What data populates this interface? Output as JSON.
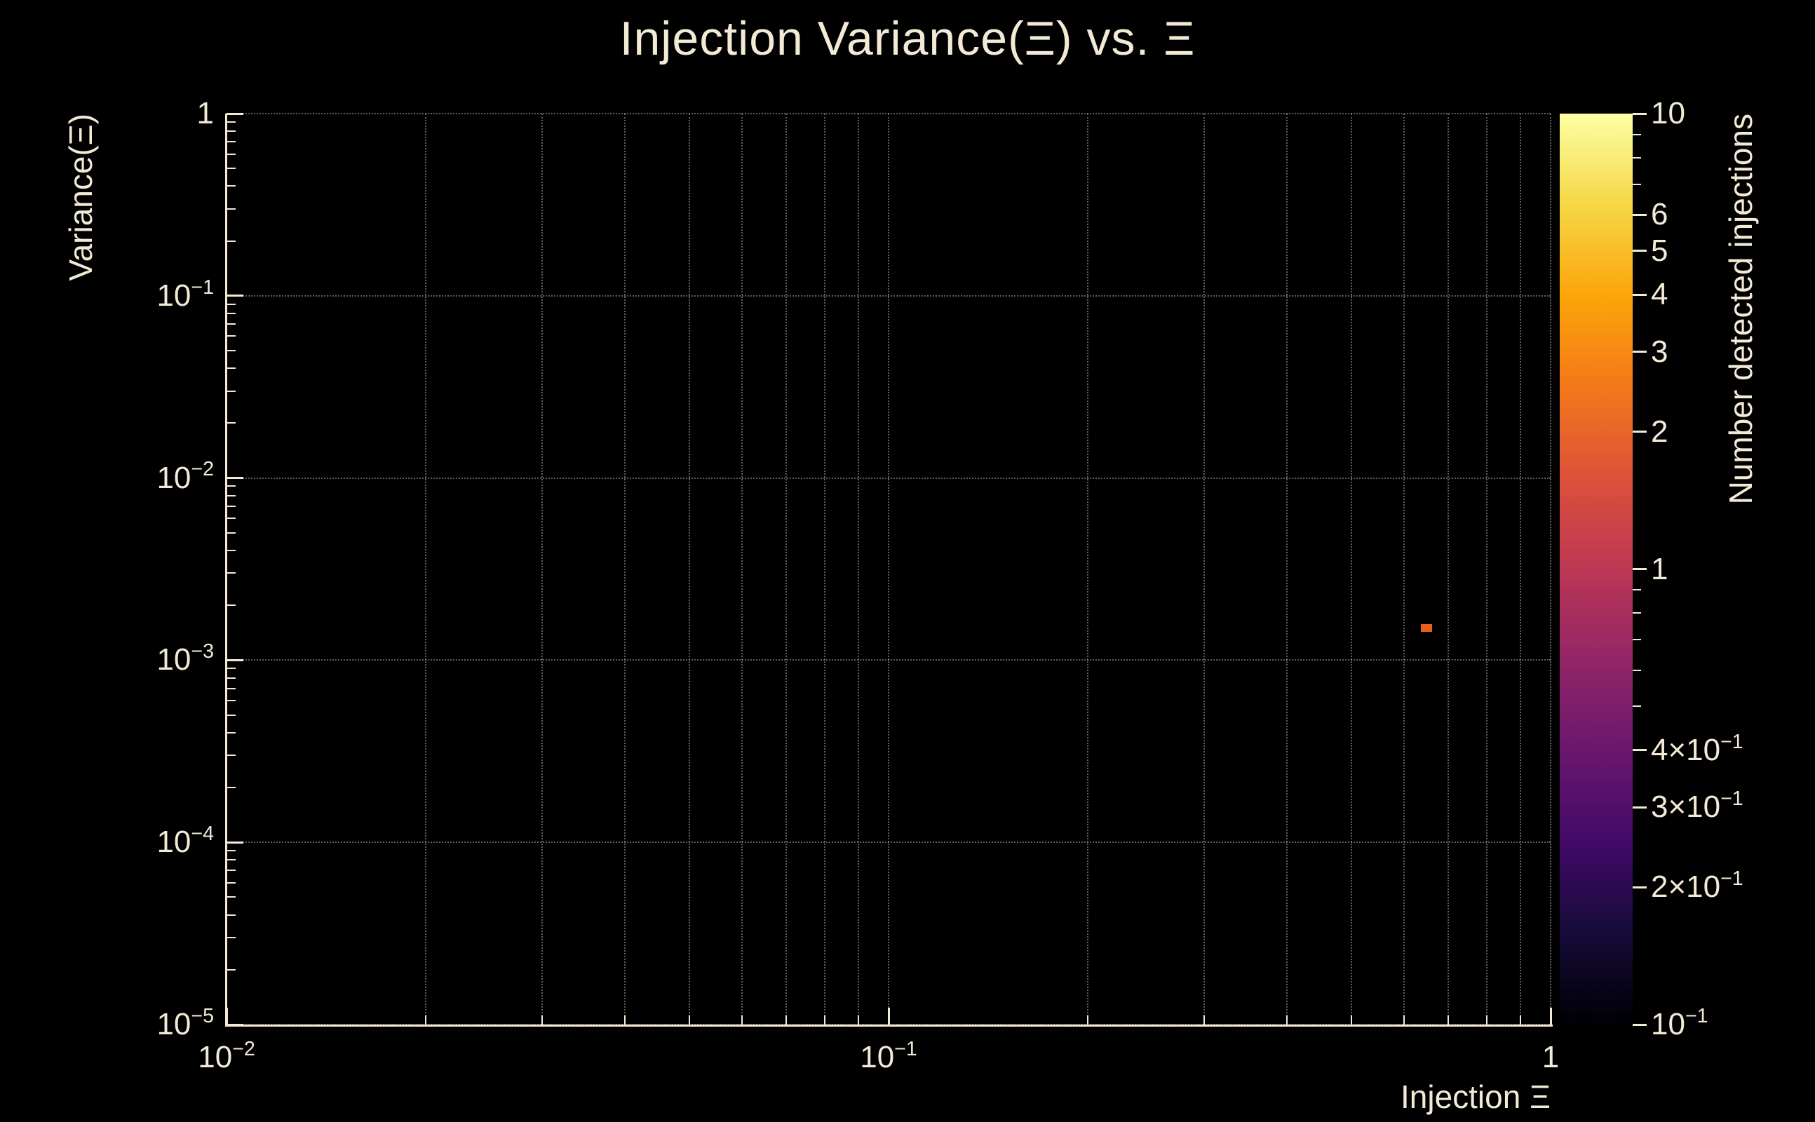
{
  "chart_data": {
    "type": "heatmap",
    "title": "Injection Variance(Ξ) vs. Ξ",
    "xlabel": "Injection Ξ",
    "ylabel": "Variance(Ξ)",
    "x_scale": "log",
    "y_scale": "log",
    "xlim": [
      0.01,
      1
    ],
    "ylim": [
      1e-05,
      1
    ],
    "grid": "dotted",
    "background": "#000000",
    "foreground": "#f3ead6",
    "x_ticks": [
      {
        "text": "10",
        "exp": "−2",
        "value": 0.01
      },
      {
        "text": "10",
        "exp": "−1",
        "value": 0.1
      },
      {
        "text": "1",
        "exp": "",
        "value": 1
      }
    ],
    "y_ticks": [
      {
        "text": "1",
        "exp": "",
        "value": 1
      },
      {
        "text": "10",
        "exp": "−1",
        "value": 0.1
      },
      {
        "text": "10",
        "exp": "−2",
        "value": 0.01
      },
      {
        "text": "10",
        "exp": "−3",
        "value": 0.001
      },
      {
        "text": "10",
        "exp": "−4",
        "value": 0.0001
      },
      {
        "text": "10",
        "exp": "−5",
        "value": 1e-05
      }
    ],
    "points": [
      {
        "x": 0.65,
        "y": 0.0015,
        "value": 1,
        "color": "#e8611c"
      }
    ],
    "colorbar": {
      "label": "Number detected injections",
      "scale": "log",
      "min": 0.1,
      "max": 10,
      "colormap": "inferno",
      "tick_labels": [
        {
          "text": "10",
          "exp": "",
          "value": 10
        },
        {
          "text": "6",
          "exp": "",
          "value": 6
        },
        {
          "text": "5",
          "exp": "",
          "value": 5
        },
        {
          "text": "4",
          "exp": "",
          "value": 4
        },
        {
          "text": "3",
          "exp": "",
          "value": 3
        },
        {
          "text": "2",
          "exp": "",
          "value": 2
        },
        {
          "text": "1",
          "exp": "",
          "value": 1
        },
        {
          "text": "4×10",
          "exp": "−1",
          "value": 0.4
        },
        {
          "text": "3×10",
          "exp": "−1",
          "value": 0.3
        },
        {
          "text": "2×10",
          "exp": "−1",
          "value": 0.2
        },
        {
          "text": "10",
          "exp": "−1",
          "value": 0.1
        }
      ],
      "minor_ticks": [
        9,
        8,
        7,
        0.9,
        0.8,
        0.7,
        0.6,
        0.5
      ],
      "gradient_stops": [
        "#000004",
        "#160b39",
        "#420a68",
        "#6a176e",
        "#932667",
        "#bc3754",
        "#dd513a",
        "#f37819",
        "#fca50a",
        "#f6d746",
        "#fcffa4"
      ]
    }
  }
}
